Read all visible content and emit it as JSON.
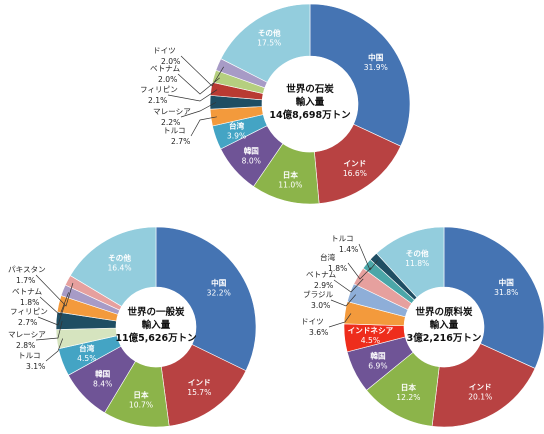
{
  "chart_data": [
    {
      "type": "pie",
      "donut": true,
      "center_lines": [
        "世界の石炭",
        "輸入量",
        "14億8,698万トン"
      ],
      "slices": [
        {
          "name": "中国",
          "label": "31.9%",
          "value": 31.9,
          "color": "#4574b3",
          "inside": true
        },
        {
          "name": "インド",
          "label": "16.6%",
          "value": 16.6,
          "color": "#b84242",
          "inside": true
        },
        {
          "name": "日本",
          "label": "11.0%",
          "value": 11.0,
          "color": "#8cb44a",
          "inside": true
        },
        {
          "name": "韓国",
          "label": "8.0%",
          "value": 8.0,
          "color": "#6f5496",
          "inside": true
        },
        {
          "name": "台湾",
          "label": "3.9%",
          "value": 3.9,
          "color": "#44a4c4",
          "inside": true
        },
        {
          "name": "トルコ",
          "label": "2.7%",
          "value": 2.7,
          "color": "#f39a3c",
          "inside": false
        },
        {
          "name": "マレーシア",
          "label": "2.2%",
          "value": 2.2,
          "color": "#1f4e63",
          "inside": false
        },
        {
          "name": "フィリピン",
          "label": "2.1%",
          "value": 2.1,
          "color": "#b93a32",
          "inside": false
        },
        {
          "name": "ベトナム",
          "label": "2.0%",
          "value": 2.0,
          "color": "#b5cf7f",
          "inside": false
        },
        {
          "name": "ドイツ",
          "label": "2.0%",
          "value": 2.0,
          "color": "#a79bc6",
          "inside": false
        },
        {
          "name": "その他",
          "label": "17.5%",
          "value": 17.5,
          "color": "#93cddd",
          "inside": true
        }
      ]
    },
    {
      "type": "pie",
      "donut": true,
      "center_lines": [
        "世界の一般炭",
        "輸入量",
        "11億5,626万トン"
      ],
      "slices": [
        {
          "name": "中国",
          "label": "32.2%",
          "value": 32.2,
          "color": "#4574b3",
          "inside": true
        },
        {
          "name": "インド",
          "label": "15.7%",
          "value": 15.7,
          "color": "#b84242",
          "inside": true
        },
        {
          "name": "日本",
          "label": "10.7%",
          "value": 10.7,
          "color": "#8cb44a",
          "inside": true
        },
        {
          "name": "韓国",
          "label": "8.4%",
          "value": 8.4,
          "color": "#6f5496",
          "inside": true
        },
        {
          "name": "台湾",
          "label": "4.5%",
          "value": 4.5,
          "color": "#44a4c4",
          "inside": true
        },
        {
          "name": "トルコ",
          "label": "3.1%",
          "value": 3.1,
          "color": "#d6e4bf",
          "inside": false
        },
        {
          "name": "マレーシア",
          "label": "2.8%",
          "value": 2.8,
          "color": "#1f4e63",
          "inside": false
        },
        {
          "name": "フィリピン",
          "label": "2.7%",
          "value": 2.7,
          "color": "#f39a3c",
          "inside": false
        },
        {
          "name": "ベトナム",
          "label": "1.8%",
          "value": 1.8,
          "color": "#a79bc6",
          "inside": false
        },
        {
          "name": "パキスタン",
          "label": "1.7%",
          "value": 1.7,
          "color": "#e6a09e",
          "inside": false
        },
        {
          "name": "その他",
          "label": "16.4%",
          "value": 16.4,
          "color": "#93cddd",
          "inside": true
        }
      ]
    },
    {
      "type": "pie",
      "donut": true,
      "center_lines": [
        "世界の原料炭",
        "輸入量",
        "3億2,216万トン"
      ],
      "slices": [
        {
          "name": "中国",
          "label": "31.8%",
          "value": 31.8,
          "color": "#4574b3",
          "inside": true
        },
        {
          "name": "インド",
          "label": "20.1%",
          "value": 20.1,
          "color": "#b84242",
          "inside": true
        },
        {
          "name": "日本",
          "label": "12.2%",
          "value": 12.2,
          "color": "#8cb44a",
          "inside": true
        },
        {
          "name": "韓国",
          "label": "6.9%",
          "value": 6.9,
          "color": "#6f5496",
          "inside": true
        },
        {
          "name": "インドネシア",
          "label": "4.5%",
          "value": 4.5,
          "color": "#ee2d1c",
          "inside": true
        },
        {
          "name": "ドイツ",
          "label": "3.6%",
          "value": 3.6,
          "color": "#f39a3c",
          "inside": false
        },
        {
          "name": "ブラジル",
          "label": "3.0%",
          "value": 3.0,
          "color": "#8eaed8",
          "inside": false
        },
        {
          "name": "ベトナム",
          "label": "2.9%",
          "value": 2.9,
          "color": "#e6a09e",
          "inside": false
        },
        {
          "name": "台湾",
          "label": "1.8%",
          "value": 1.8,
          "color": "#4ba6a8",
          "inside": false
        },
        {
          "name": "トルコ",
          "label": "1.4%",
          "value": 1.4,
          "color": "#1f4e63",
          "inside": false
        },
        {
          "name": "その他",
          "label": "11.8%",
          "value": 11.8,
          "color": "#93cddd",
          "inside": true
        }
      ]
    }
  ]
}
